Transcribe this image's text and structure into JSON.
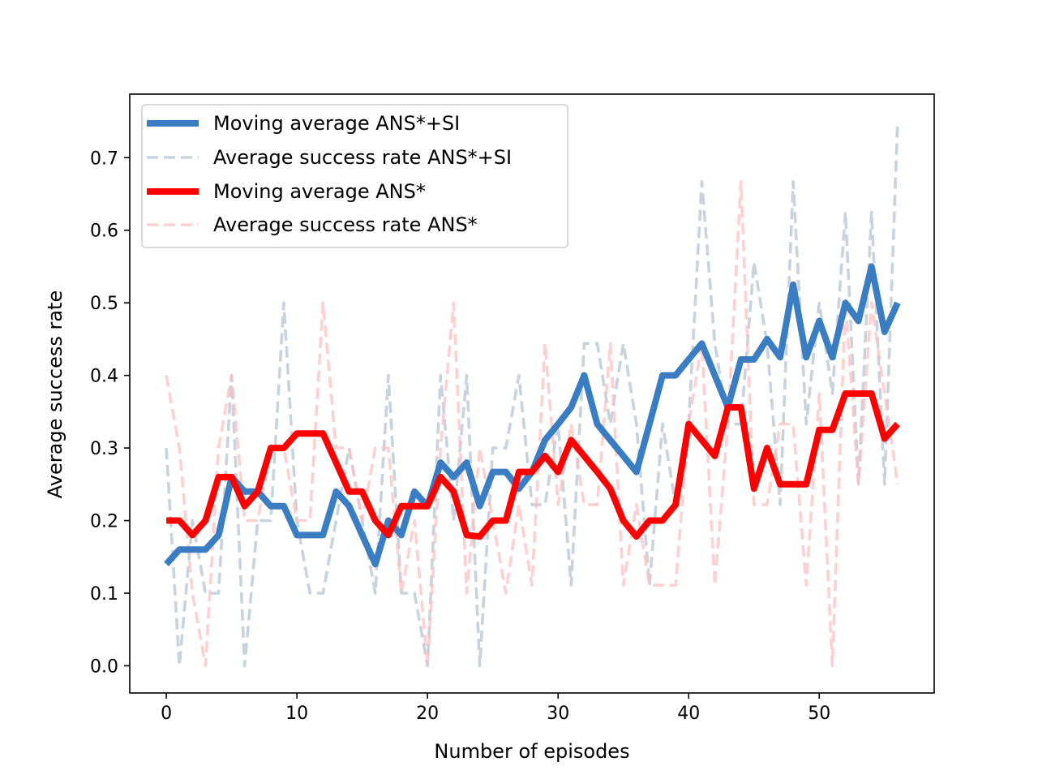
{
  "chart_data": {
    "type": "line",
    "title": "",
    "xlabel": "Number of episodes",
    "ylabel": "Average success rate",
    "xlim": [
      -2.8,
      58.8
    ],
    "ylim": [
      -0.0375,
      0.7875
    ],
    "xticks": [
      0,
      10,
      20,
      30,
      40,
      50
    ],
    "yticks": [
      0.0,
      0.1,
      0.2,
      0.3,
      0.4,
      0.5,
      0.6,
      0.7
    ],
    "ytick_labels": [
      "0.0",
      "0.1",
      "0.2",
      "0.3",
      "0.4",
      "0.5",
      "0.6",
      "0.7"
    ],
    "legend_position": "top-left",
    "series": [
      {
        "name": "Moving average ANS*+SI",
        "style": "solid-thick",
        "color": "#3A7DC2",
        "values": [
          0.14,
          0.16,
          0.16,
          0.16,
          0.18,
          0.26,
          0.24,
          0.24,
          0.22,
          0.22,
          0.18,
          0.18,
          0.18,
          0.24,
          0.22,
          0.18,
          0.14,
          0.2,
          0.18,
          0.24,
          0.22,
          0.28,
          0.26,
          0.28,
          0.22,
          0.267,
          0.267,
          0.244,
          0.267,
          0.311,
          0.333,
          0.356,
          0.4,
          0.333,
          0.311,
          0.289,
          0.267,
          0.333,
          0.4,
          0.4,
          0.422,
          0.444,
          0.4,
          0.356,
          0.422,
          0.422,
          0.45,
          0.425,
          0.525,
          0.425,
          0.475,
          0.425,
          0.5,
          0.475,
          0.55,
          0.46,
          0.5
        ]
      },
      {
        "name": "Average success rate ANS*+SI",
        "style": "dashed-thin",
        "color": "#B4C4D4",
        "values": [
          0.3,
          0.0,
          0.2,
          0.1,
          0.1,
          0.4,
          0.0,
          0.2,
          0.2,
          0.5,
          0.2,
          0.1,
          0.1,
          0.2,
          0.3,
          0.2,
          0.1,
          0.4,
          0.1,
          0.1,
          0.0,
          0.4,
          0.2,
          0.4,
          0.0,
          0.3,
          0.3,
          0.4,
          0.222,
          0.222,
          0.333,
          0.111,
          0.444,
          0.444,
          0.333,
          0.444,
          0.333,
          0.111,
          0.333,
          0.222,
          0.333,
          0.667,
          0.444,
          0.333,
          0.333,
          0.556,
          0.444,
          0.222,
          0.667,
          0.333,
          0.5,
          0.375,
          0.625,
          0.25,
          0.625,
          0.25,
          0.75
        ]
      },
      {
        "name": "Moving average ANS*",
        "style": "solid-thick",
        "color": "#FF0000",
        "values": [
          0.2,
          0.2,
          0.18,
          0.2,
          0.26,
          0.26,
          0.22,
          0.24,
          0.3,
          0.3,
          0.32,
          0.32,
          0.32,
          0.28,
          0.24,
          0.24,
          0.2,
          0.18,
          0.22,
          0.22,
          0.22,
          0.26,
          0.24,
          0.18,
          0.178,
          0.2,
          0.2,
          0.267,
          0.267,
          0.289,
          0.267,
          0.311,
          0.289,
          0.267,
          0.244,
          0.2,
          0.178,
          0.2,
          0.2,
          0.222,
          0.333,
          0.311,
          0.289,
          0.356,
          0.356,
          0.244,
          0.3,
          0.25,
          0.25,
          0.25,
          0.325,
          0.325,
          0.375,
          0.375,
          0.375,
          0.313,
          0.333
        ]
      },
      {
        "name": "Average success rate ANS*",
        "style": "dashed-thin",
        "color": "#FFC0C0",
        "values": [
          0.4,
          0.3,
          0.1,
          0.0,
          0.3,
          0.4,
          0.2,
          0.2,
          0.3,
          0.3,
          0.2,
          0.2,
          0.5,
          0.3,
          0.3,
          0.2,
          0.3,
          0.3,
          0.1,
          0.2,
          0.0,
          0.3,
          0.5,
          0.1,
          0.3,
          0.2,
          0.1,
          0.222,
          0.111,
          0.444,
          0.222,
          0.333,
          0.222,
          0.222,
          0.444,
          0.111,
          0.222,
          0.111,
          0.111,
          0.111,
          0.333,
          0.444,
          0.111,
          0.333,
          0.667,
          0.222,
          0.222,
          0.333,
          0.333,
          0.111,
          0.375,
          0.0,
          0.5,
          0.25,
          0.5,
          0.375,
          0.25
        ]
      }
    ]
  }
}
